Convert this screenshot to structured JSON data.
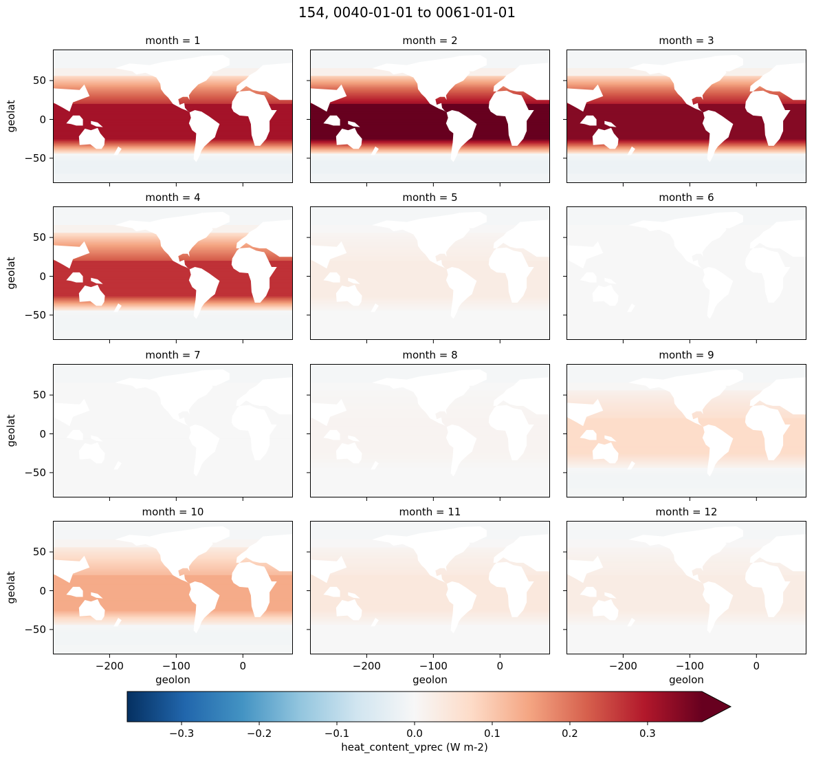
{
  "figure": {
    "title": "154, 0040-01-01 to 0061-01-01"
  },
  "chart_data": {
    "type": "heatmap",
    "title": "154, 0040-01-01 to 0061-01-01",
    "layout": "4x3 facet grid",
    "facet_variable": "month",
    "xlabel": "geolon",
    "ylabel": "geolat",
    "xlim": [
      -285,
      75
    ],
    "ylim": [
      -82,
      90
    ],
    "xticks": [
      -200,
      -100,
      0
    ],
    "xtick_labels": [
      "−200",
      "−100",
      "0"
    ],
    "yticks": [
      50,
      0,
      -50
    ],
    "ytick_labels": [
      "50",
      "0",
      "−50"
    ],
    "colormap": "RdBu_r",
    "colorbar": {
      "label": "heat_content_vprec (W m-2)",
      "vmin": -0.37,
      "vmax": 0.37,
      "extend": "max",
      "ticks": [
        -0.3,
        -0.2,
        -0.1,
        0.0,
        0.1,
        0.2,
        0.3
      ],
      "tick_labels": [
        "−0.3",
        "−0.2",
        "−0.1",
        "0.0",
        "0.1",
        "0.2",
        "0.3"
      ]
    },
    "panels": [
      {
        "title": "month = 1",
        "month": 1,
        "tropical_value": 0.31,
        "southern_ocean_value": -0.02
      },
      {
        "title": "month = 2",
        "month": 2,
        "tropical_value": 0.37,
        "southern_ocean_value": -0.02
      },
      {
        "title": "month = 3",
        "month": 3,
        "tropical_value": 0.34,
        "southern_ocean_value": -0.02
      },
      {
        "title": "month = 4",
        "month": 4,
        "tropical_value": 0.27,
        "southern_ocean_value": -0.01
      },
      {
        "title": "month = 5",
        "month": 5,
        "tropical_value": 0.03,
        "southern_ocean_value": 0.0
      },
      {
        "title": "month = 6",
        "month": 6,
        "tropical_value": 0.0,
        "southern_ocean_value": 0.0
      },
      {
        "title": "month = 7",
        "month": 7,
        "tropical_value": 0.0,
        "southern_ocean_value": 0.0
      },
      {
        "title": "month = 8",
        "month": 8,
        "tropical_value": 0.01,
        "southern_ocean_value": 0.0
      },
      {
        "title": "month = 9",
        "month": 9,
        "tropical_value": 0.07,
        "southern_ocean_value": -0.01
      },
      {
        "title": "month = 10",
        "month": 10,
        "tropical_value": 0.14,
        "southern_ocean_value": -0.01
      },
      {
        "title": "month = 11",
        "month": 11,
        "tropical_value": 0.04,
        "southern_ocean_value": 0.0
      },
      {
        "title": "month = 12",
        "month": 12,
        "tropical_value": 0.03,
        "southern_ocean_value": 0.0
      }
    ]
  }
}
